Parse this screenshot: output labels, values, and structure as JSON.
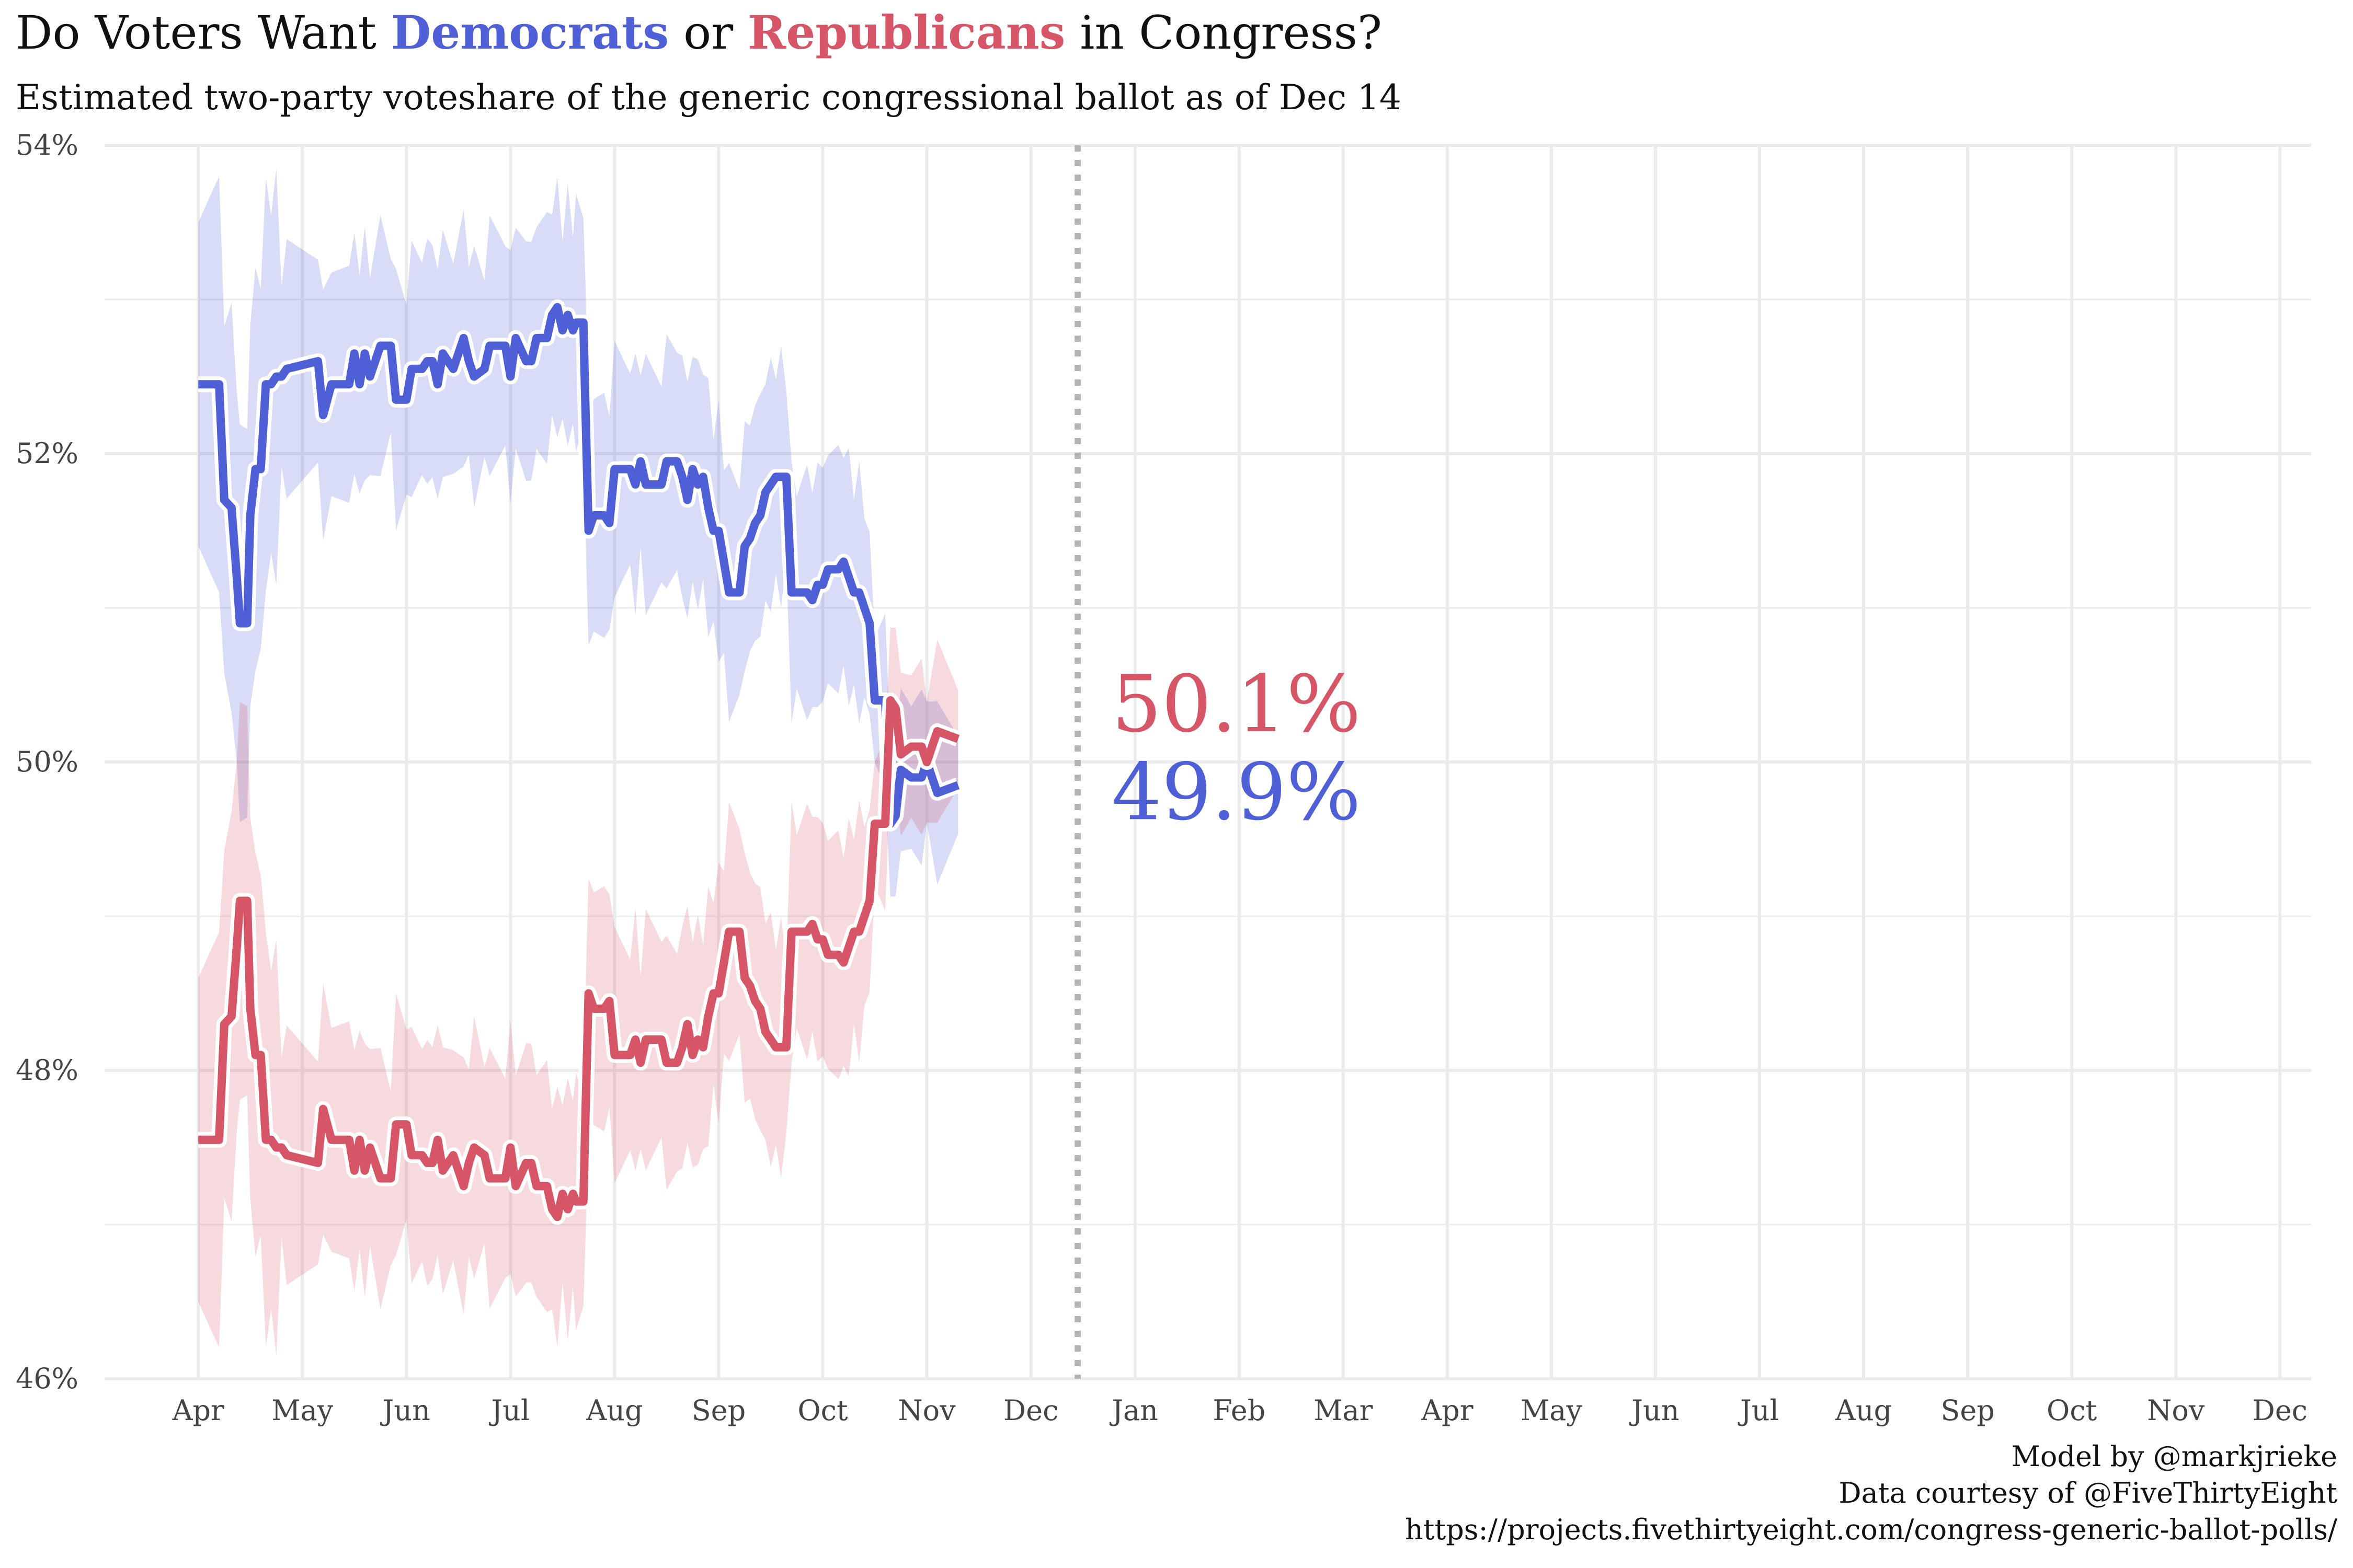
{
  "title": {
    "prefix": "Do Voters Want ",
    "dem_word": "Democrats",
    "middle": " or ",
    "rep_word": "Republicans",
    "suffix": " in Congress?"
  },
  "subtitle": "Estimated two-party voteshare of the generic congressional ballot as of Dec 14",
  "caption": {
    "line1": "Model by @markjrieke",
    "line2": "Data courtesy of @FiveThirtyEight",
    "line3": "https://projects.fivethirtyeight.com/congress-generic-ballot-polls/"
  },
  "colors": {
    "dem": "#4f5fd6",
    "rep": "#d65566",
    "grid": "#ebebeb",
    "today_line": "#b3b3b3"
  },
  "chart_data": {
    "type": "line",
    "x_tick_labels": [
      "Apr",
      "May",
      "Jun",
      "Jul",
      "Aug",
      "Sep",
      "Oct",
      "Nov",
      "Dec",
      "Jan",
      "Feb",
      "Mar",
      "Apr",
      "May",
      "Jun",
      "Jul",
      "Aug",
      "Sep",
      "Oct",
      "Nov",
      "Dec"
    ],
    "x_tick_months": [
      0,
      1,
      2,
      3,
      4,
      5,
      6,
      7,
      8,
      9,
      10,
      11,
      12,
      13,
      14,
      15,
      16,
      17,
      18,
      19,
      20
    ],
    "ylim": [
      46,
      54
    ],
    "y_ticks": [
      46,
      48,
      50,
      52,
      54
    ],
    "y_tick_labels": [
      "46%",
      "48%",
      "50%",
      "52%",
      "54%"
    ],
    "today_month": 8.45,
    "grid": true,
    "series": [
      {
        "key": "dem",
        "name": "Democrats",
        "end_label": "49.9%",
        "values": [
          [
            0,
            52.45
          ],
          [
            0.2,
            52.45
          ],
          [
            0.25,
            51.7
          ],
          [
            0.32,
            51.65
          ],
          [
            0.37,
            51.2
          ],
          [
            0.4,
            50.9
          ],
          [
            0.47,
            50.9
          ],
          [
            0.5,
            51.6
          ],
          [
            0.55,
            51.9
          ],
          [
            0.6,
            51.9
          ],
          [
            0.65,
            52.45
          ],
          [
            0.7,
            52.45
          ],
          [
            0.75,
            52.5
          ],
          [
            0.8,
            52.5
          ],
          [
            0.85,
            52.55
          ],
          [
            1.15,
            52.6
          ],
          [
            1.2,
            52.25
          ],
          [
            1.28,
            52.45
          ],
          [
            1.45,
            52.45
          ],
          [
            1.5,
            52.65
          ],
          [
            1.55,
            52.45
          ],
          [
            1.6,
            52.65
          ],
          [
            1.65,
            52.5
          ],
          [
            1.75,
            52.7
          ],
          [
            1.85,
            52.7
          ],
          [
            1.9,
            52.35
          ],
          [
            2.0,
            52.35
          ],
          [
            2.05,
            52.55
          ],
          [
            2.15,
            52.55
          ],
          [
            2.2,
            52.6
          ],
          [
            2.25,
            52.6
          ],
          [
            2.3,
            52.45
          ],
          [
            2.35,
            52.65
          ],
          [
            2.45,
            52.55
          ],
          [
            2.55,
            52.75
          ],
          [
            2.6,
            52.6
          ],
          [
            2.65,
            52.5
          ],
          [
            2.75,
            52.55
          ],
          [
            2.8,
            52.7
          ],
          [
            2.95,
            52.7
          ],
          [
            3.0,
            52.5
          ],
          [
            3.05,
            52.75
          ],
          [
            3.15,
            52.6
          ],
          [
            3.2,
            52.6
          ],
          [
            3.25,
            52.75
          ],
          [
            3.35,
            52.75
          ],
          [
            3.4,
            52.9
          ],
          [
            3.45,
            52.95
          ],
          [
            3.5,
            52.8
          ],
          [
            3.55,
            52.9
          ],
          [
            3.6,
            52.8
          ],
          [
            3.63,
            52.85
          ],
          [
            3.7,
            52.85
          ],
          [
            3.72,
            52.3
          ],
          [
            3.75,
            51.5
          ],
          [
            3.8,
            51.6
          ],
          [
            3.9,
            51.6
          ],
          [
            3.95,
            51.55
          ],
          [
            4.0,
            51.9
          ],
          [
            4.15,
            51.9
          ],
          [
            4.2,
            51.8
          ],
          [
            4.25,
            51.95
          ],
          [
            4.3,
            51.8
          ],
          [
            4.45,
            51.8
          ],
          [
            4.5,
            51.95
          ],
          [
            4.6,
            51.95
          ],
          [
            4.65,
            51.85
          ],
          [
            4.7,
            51.7
          ],
          [
            4.75,
            51.9
          ],
          [
            4.8,
            51.8
          ],
          [
            4.85,
            51.85
          ],
          [
            4.9,
            51.65
          ],
          [
            4.95,
            51.5
          ],
          [
            5.0,
            51.5
          ],
          [
            5.05,
            51.3
          ],
          [
            5.1,
            51.1
          ],
          [
            5.2,
            51.1
          ],
          [
            5.25,
            51.4
          ],
          [
            5.3,
            51.45
          ],
          [
            5.35,
            51.55
          ],
          [
            5.4,
            51.6
          ],
          [
            5.45,
            51.75
          ],
          [
            5.5,
            51.8
          ],
          [
            5.55,
            51.85
          ],
          [
            5.6,
            51.85
          ],
          [
            5.65,
            51.85
          ],
          [
            5.7,
            51.1
          ],
          [
            5.75,
            51.1
          ],
          [
            5.85,
            51.1
          ],
          [
            5.9,
            51.05
          ],
          [
            5.95,
            51.15
          ],
          [
            6.0,
            51.15
          ],
          [
            6.05,
            51.25
          ],
          [
            6.15,
            51.25
          ],
          [
            6.2,
            51.3
          ],
          [
            6.25,
            51.2
          ],
          [
            6.3,
            51.1
          ],
          [
            6.35,
            51.1
          ],
          [
            6.4,
            51.0
          ],
          [
            6.45,
            50.9
          ],
          [
            6.5,
            50.4
          ],
          [
            6.6,
            50.4
          ],
          [
            6.65,
            49.6
          ],
          [
            6.7,
            49.65
          ],
          [
            6.75,
            49.95
          ],
          [
            6.85,
            49.9
          ],
          [
            6.95,
            49.9
          ],
          [
            7.0,
            50.0
          ],
          [
            7.1,
            49.8
          ],
          [
            7.3,
            49.85
          ]
        ]
      },
      {
        "key": "rep",
        "name": "Republicans",
        "end_label": "50.1%",
        "values": [
          [
            0,
            47.55
          ],
          [
            0.2,
            47.55
          ],
          [
            0.25,
            48.3
          ],
          [
            0.32,
            48.35
          ],
          [
            0.37,
            48.8
          ],
          [
            0.4,
            49.1
          ],
          [
            0.47,
            49.1
          ],
          [
            0.5,
            48.4
          ],
          [
            0.55,
            48.1
          ],
          [
            0.6,
            48.1
          ],
          [
            0.65,
            47.55
          ],
          [
            0.7,
            47.55
          ],
          [
            0.75,
            47.5
          ],
          [
            0.8,
            47.5
          ],
          [
            0.85,
            47.45
          ],
          [
            1.15,
            47.4
          ],
          [
            1.2,
            47.75
          ],
          [
            1.28,
            47.55
          ],
          [
            1.45,
            47.55
          ],
          [
            1.5,
            47.35
          ],
          [
            1.55,
            47.55
          ],
          [
            1.6,
            47.35
          ],
          [
            1.65,
            47.5
          ],
          [
            1.75,
            47.3
          ],
          [
            1.85,
            47.3
          ],
          [
            1.9,
            47.65
          ],
          [
            2.0,
            47.65
          ],
          [
            2.05,
            47.45
          ],
          [
            2.15,
            47.45
          ],
          [
            2.2,
            47.4
          ],
          [
            2.25,
            47.4
          ],
          [
            2.3,
            47.55
          ],
          [
            2.35,
            47.35
          ],
          [
            2.45,
            47.45
          ],
          [
            2.55,
            47.25
          ],
          [
            2.6,
            47.4
          ],
          [
            2.65,
            47.5
          ],
          [
            2.75,
            47.45
          ],
          [
            2.8,
            47.3
          ],
          [
            2.95,
            47.3
          ],
          [
            3.0,
            47.5
          ],
          [
            3.05,
            47.25
          ],
          [
            3.15,
            47.4
          ],
          [
            3.2,
            47.4
          ],
          [
            3.25,
            47.25
          ],
          [
            3.35,
            47.25
          ],
          [
            3.4,
            47.1
          ],
          [
            3.45,
            47.05
          ],
          [
            3.5,
            47.2
          ],
          [
            3.55,
            47.1
          ],
          [
            3.6,
            47.2
          ],
          [
            3.63,
            47.15
          ],
          [
            3.7,
            47.15
          ],
          [
            3.72,
            47.7
          ],
          [
            3.75,
            48.5
          ],
          [
            3.8,
            48.4
          ],
          [
            3.9,
            48.4
          ],
          [
            3.95,
            48.45
          ],
          [
            4.0,
            48.1
          ],
          [
            4.15,
            48.1
          ],
          [
            4.2,
            48.2
          ],
          [
            4.25,
            48.05
          ],
          [
            4.3,
            48.2
          ],
          [
            4.45,
            48.2
          ],
          [
            4.5,
            48.05
          ],
          [
            4.6,
            48.05
          ],
          [
            4.65,
            48.15
          ],
          [
            4.7,
            48.3
          ],
          [
            4.75,
            48.1
          ],
          [
            4.8,
            48.2
          ],
          [
            4.85,
            48.15
          ],
          [
            4.9,
            48.35
          ],
          [
            4.95,
            48.5
          ],
          [
            5.0,
            48.5
          ],
          [
            5.05,
            48.7
          ],
          [
            5.1,
            48.9
          ],
          [
            5.2,
            48.9
          ],
          [
            5.25,
            48.6
          ],
          [
            5.3,
            48.55
          ],
          [
            5.35,
            48.45
          ],
          [
            5.4,
            48.4
          ],
          [
            5.45,
            48.25
          ],
          [
            5.5,
            48.2
          ],
          [
            5.55,
            48.15
          ],
          [
            5.6,
            48.15
          ],
          [
            5.65,
            48.15
          ],
          [
            5.7,
            48.9
          ],
          [
            5.75,
            48.9
          ],
          [
            5.85,
            48.9
          ],
          [
            5.9,
            48.95
          ],
          [
            5.95,
            48.85
          ],
          [
            6.0,
            48.85
          ],
          [
            6.05,
            48.75
          ],
          [
            6.15,
            48.75
          ],
          [
            6.2,
            48.7
          ],
          [
            6.25,
            48.8
          ],
          [
            6.3,
            48.9
          ],
          [
            6.35,
            48.9
          ],
          [
            6.4,
            49.0
          ],
          [
            6.45,
            49.1
          ],
          [
            6.5,
            49.6
          ],
          [
            6.6,
            49.6
          ],
          [
            6.65,
            50.4
          ],
          [
            6.7,
            50.35
          ],
          [
            6.75,
            50.05
          ],
          [
            6.85,
            50.1
          ],
          [
            6.95,
            50.1
          ],
          [
            7.0,
            50.0
          ],
          [
            7.1,
            50.2
          ],
          [
            7.3,
            50.15
          ]
        ]
      }
    ]
  }
}
